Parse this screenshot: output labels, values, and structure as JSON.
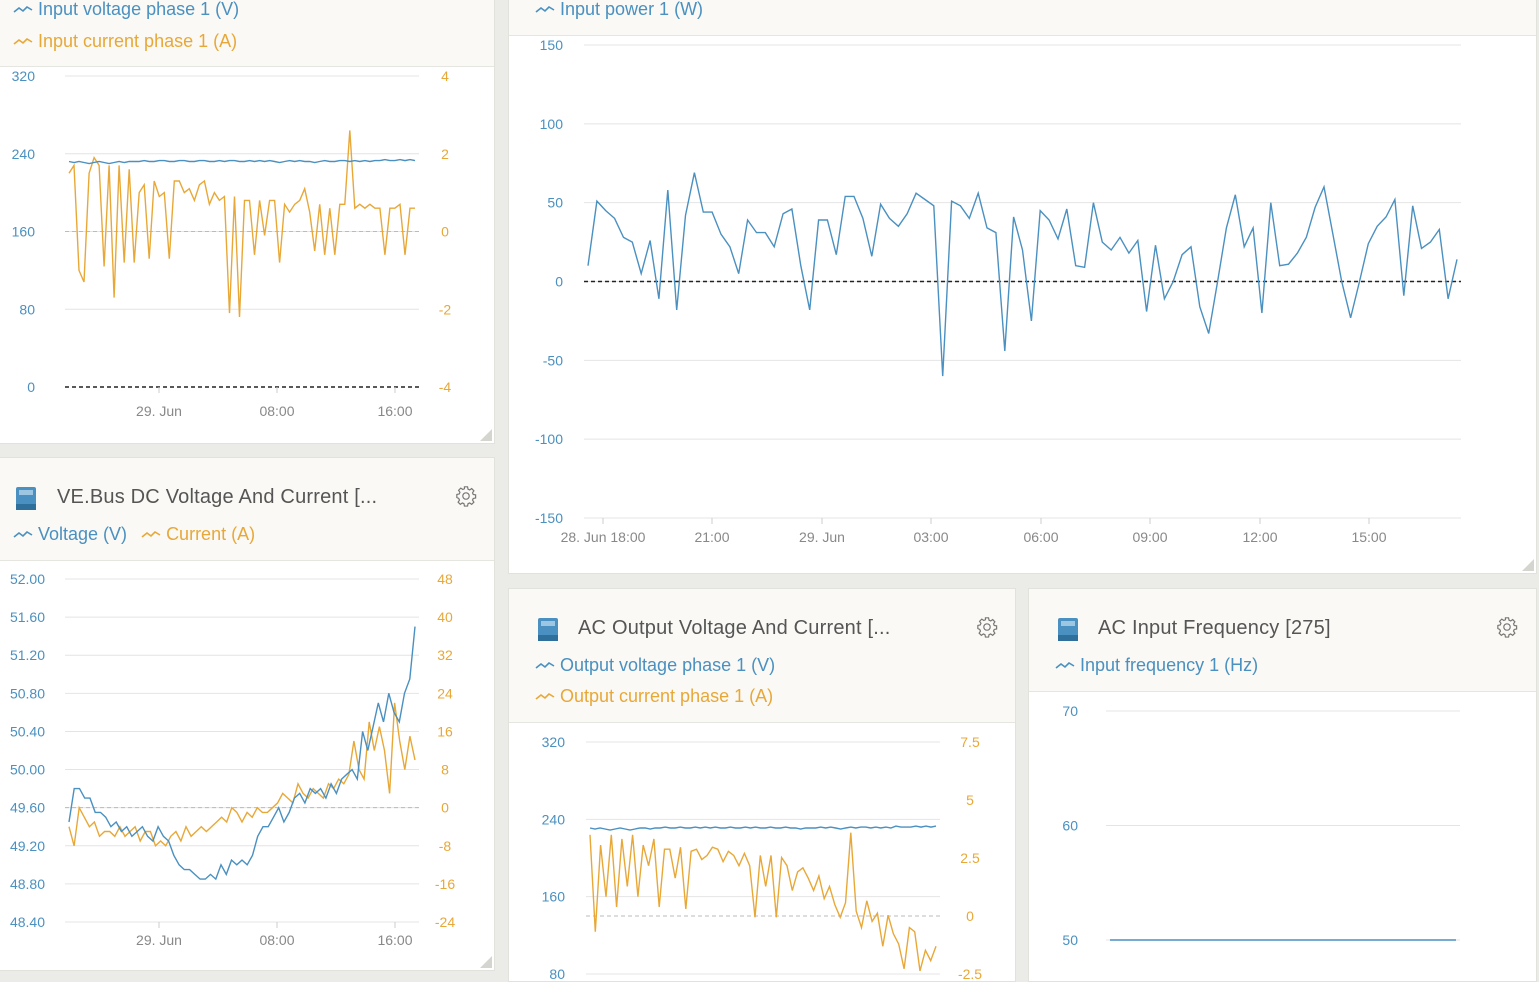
{
  "colors": {
    "voltage": "#4a90c0",
    "current": "#e8a838",
    "grid": "#e4e4e4",
    "tick_blue": "#4a90c0",
    "tick_orange": "#e8a838"
  },
  "widgets": {
    "input_vi": {
      "legend": [
        "Input voltage phase 1 (V)",
        "Input current phase 1 (A)"
      ]
    },
    "input_power": {
      "legend": [
        "Input power 1 (W)"
      ]
    },
    "vebus_dc": {
      "title": "VE.Bus DC Voltage And Current [...",
      "legend": [
        "Voltage (V)",
        "Current (A)"
      ]
    },
    "ac_output": {
      "title": "AC Output Voltage And Current [...",
      "legend": [
        "Output voltage phase 1 (V)",
        "Output current phase 1 (A)"
      ]
    },
    "ac_freq": {
      "title": "AC Input Frequency [275]",
      "legend": [
        "Input frequency 1 (Hz)"
      ]
    }
  },
  "chart_data": [
    {
      "id": "input_vi",
      "type": "line",
      "x_ticks": [
        "29. Jun",
        "08:00",
        "16:00"
      ],
      "y_left": {
        "ticks": [
          "320",
          "240",
          "160",
          "80",
          "0"
        ],
        "range": [
          0,
          320
        ]
      },
      "y_right": {
        "ticks": [
          "4",
          "2",
          "0",
          "-2",
          "-4"
        ],
        "range": [
          -4,
          4
        ]
      },
      "series": [
        {
          "name": "Input voltage phase 1 (V)",
          "axis": "left",
          "values": [
            232,
            231,
            232,
            231,
            230,
            231,
            232,
            231,
            230,
            231,
            232,
            231,
            232,
            232,
            232,
            233,
            232,
            232,
            233,
            233,
            232,
            232,
            233,
            233,
            232,
            232,
            233,
            233,
            232,
            232,
            233,
            232,
            233,
            233,
            232,
            232,
            233,
            232,
            233,
            232,
            233,
            232,
            231,
            232,
            233,
            232,
            233,
            232,
            232,
            231,
            232,
            233,
            232,
            232,
            233,
            233,
            232,
            233,
            232,
            233,
            232,
            233,
            233,
            234,
            233,
            233,
            234,
            233,
            234,
            233
          ]
        },
        {
          "name": "Input current phase 1 (A)",
          "axis": "right",
          "values": [
            1.5,
            1.7,
            -1,
            -1.3,
            1.5,
            1.9,
            1.7,
            -0.9,
            1.7,
            -1.7,
            1.7,
            -0.8,
            1.6,
            -0.8,
            1.0,
            1.2,
            -0.7,
            1.3,
            0.9,
            1.0,
            -0.7,
            1.3,
            1.3,
            1.0,
            1.1,
            0.8,
            1.2,
            1.3,
            0.7,
            1.0,
            0.8,
            0.9,
            -2.1,
            0.9,
            -2.2,
            0.8,
            0.8,
            -0.6,
            0.8,
            -0.1,
            0.8,
            0.8,
            -0.8,
            0.7,
            0.5,
            0.7,
            0.8,
            1.1,
            0.5,
            -0.5,
            0.7,
            -0.6,
            0.6,
            -0.6,
            0.7,
            0.7,
            2.6,
            0.6,
            0.7,
            0.6,
            0.7,
            0.6,
            0.6,
            -0.6,
            0.6,
            0.6,
            0.7,
            -0.6,
            0.6,
            0.6
          ]
        }
      ]
    },
    {
      "id": "input_power",
      "type": "line",
      "x_ticks": [
        "28. Jun 18:00",
        "21:00",
        "29. Jun",
        "03:00",
        "06:00",
        "09:00",
        "12:00",
        "15:00"
      ],
      "y_left": {
        "ticks": [
          "150",
          "100",
          "50",
          "0",
          "-50",
          "-100",
          "-150"
        ],
        "range": [
          -150,
          150
        ]
      },
      "series": [
        {
          "name": "Input power 1 (W)",
          "axis": "left",
          "values": [
            10,
            51,
            45,
            40,
            28,
            25,
            5,
            26,
            -11,
            58,
            -18,
            42,
            69,
            44,
            44,
            30,
            22,
            5,
            39,
            31,
            31,
            22,
            43,
            46,
            10,
            -18,
            39,
            39,
            17,
            54,
            54,
            40,
            16,
            49,
            40,
            35,
            43,
            56,
            52,
            48,
            -60,
            51,
            48,
            40,
            56,
            34,
            31,
            -44,
            41,
            20,
            -25,
            45,
            39,
            27,
            46,
            10,
            9,
            50,
            25,
            20,
            28,
            18,
            26,
            -19,
            23,
            -11,
            0,
            17,
            22,
            -16,
            -33,
            0,
            34,
            55,
            22,
            34,
            -20,
            50,
            10,
            11,
            18,
            28,
            47,
            60,
            30,
            0,
            -23,
            0,
            24,
            35,
            41,
            52,
            -9,
            48,
            21,
            25,
            33,
            -11,
            14
          ]
        }
      ]
    },
    {
      "id": "vebus_dc",
      "type": "line",
      "x_ticks": [
        "29. Jun",
        "08:00",
        "16:00"
      ],
      "y_left": {
        "ticks": [
          "52.00",
          "51.60",
          "51.20",
          "50.80",
          "50.40",
          "50.00",
          "49.60",
          "49.20",
          "48.80",
          "48.40"
        ],
        "range": [
          48.4,
          52.0
        ]
      },
      "y_right": {
        "ticks": [
          "48",
          "40",
          "32",
          "24",
          "16",
          "8",
          "0",
          "-8",
          "-16",
          "-24"
        ],
        "range": [
          -24,
          48
        ]
      },
      "series": [
        {
          "name": "Voltage (V)",
          "axis": "left",
          "values": [
            49.45,
            49.8,
            49.8,
            49.7,
            49.7,
            49.55,
            49.55,
            49.5,
            49.4,
            49.45,
            49.35,
            49.4,
            49.3,
            49.35,
            49.4,
            49.3,
            49.25,
            49.4,
            49.3,
            49.25,
            49.1,
            49.0,
            48.95,
            48.95,
            48.9,
            48.85,
            48.85,
            48.9,
            48.85,
            49.0,
            48.9,
            49.05,
            49.0,
            49.05,
            49.0,
            49.1,
            49.3,
            49.4,
            49.4,
            49.5,
            49.6,
            49.45,
            49.55,
            49.7,
            49.75,
            49.65,
            49.8,
            49.75,
            49.8,
            49.7,
            49.85,
            49.75,
            49.9,
            49.95,
            50.0,
            49.9,
            50.4,
            50.2,
            50.45,
            50.7,
            50.5,
            50.8,
            50.6,
            50.5,
            50.8,
            50.95,
            51.5
          ]
        },
        {
          "name": "Current (A)",
          "axis": "right",
          "values": [
            -4,
            -8,
            0,
            -2,
            -4,
            -3,
            -6,
            -5,
            -5,
            -6,
            -4,
            -6,
            -5,
            -4,
            -7,
            -5,
            -5,
            -8,
            -7,
            -8,
            -6,
            -5,
            -7,
            -4,
            -6,
            -5,
            -4,
            -5,
            -4,
            -3,
            -2,
            -3,
            0,
            -1,
            -3,
            -1,
            -2,
            0,
            -1,
            -1,
            0,
            1,
            3,
            2,
            1,
            5,
            3,
            2,
            4,
            3,
            2,
            5,
            4,
            6,
            5,
            7,
            14,
            8,
            6,
            18,
            12,
            17,
            12,
            3,
            22,
            14,
            8,
            15,
            10
          ]
        }
      ]
    },
    {
      "id": "ac_output",
      "type": "line",
      "y_left": {
        "ticks": [
          "320",
          "240",
          "160",
          "80"
        ],
        "range": [
          80,
          320
        ]
      },
      "y_right": {
        "ticks": [
          "7.5",
          "5",
          "2.5",
          "0",
          "-2.5"
        ],
        "range": [
          -3.75,
          7.5
        ]
      },
      "series": [
        {
          "name": "Output voltage phase 1 (V)",
          "axis": "left",
          "values": [
            231,
            230,
            231,
            230,
            229,
            230,
            231,
            230,
            229,
            230,
            231,
            231,
            230,
            231,
            231,
            232,
            231,
            231,
            232,
            231,
            231,
            232,
            231,
            232,
            231,
            232,
            231,
            231,
            232,
            231,
            231,
            232,
            231,
            232,
            231,
            231,
            232,
            231,
            231,
            232,
            231,
            231,
            230,
            231,
            231,
            231,
            232,
            231,
            232,
            231,
            230,
            231,
            232,
            231,
            232,
            232,
            231,
            232,
            231,
            232,
            231,
            233,
            232,
            232,
            232,
            233,
            232,
            233,
            232,
            233
          ]
        },
        {
          "name": "Output current phase 1 (A)",
          "axis": "right",
          "values": [
            3,
            -1.7,
            2.5,
            0,
            3,
            -0.5,
            2.8,
            0.5,
            3,
            0,
            2.5,
            1.5,
            2.8,
            -0.5,
            2.3,
            2.3,
            0.9,
            2.4,
            -0.6,
            2.2,
            2.3,
            1.8,
            2.0,
            2.4,
            2.3,
            1.7,
            2.2,
            2.0,
            1.5,
            2.1,
            1.5,
            -1.0,
            2.0,
            0.5,
            2.0,
            -1.0,
            1.9,
            1.5,
            0.3,
            1.2,
            1.4,
            0.9,
            0.3,
            1.0,
            -0.1,
            0.5,
            -0.4,
            -1.0,
            -0.3,
            3.1,
            -0.7,
            -1.5,
            -0.2,
            -1.2,
            -0.8,
            -2.4,
            -0.9,
            -1.8,
            -2.3,
            -3.5,
            -1.5,
            -1.7,
            -3.6,
            -2.6,
            -3.1,
            -2.4
          ]
        }
      ]
    },
    {
      "id": "ac_freq",
      "type": "line",
      "y_left": {
        "ticks": [
          "70",
          "60",
          "50"
        ],
        "range": [
          50,
          70
        ]
      },
      "series": [
        {
          "name": "Input frequency 1 (Hz)",
          "axis": "left",
          "values": [
            50,
            50,
            50,
            50,
            50,
            50,
            50,
            50,
            50,
            50
          ]
        }
      ]
    }
  ]
}
